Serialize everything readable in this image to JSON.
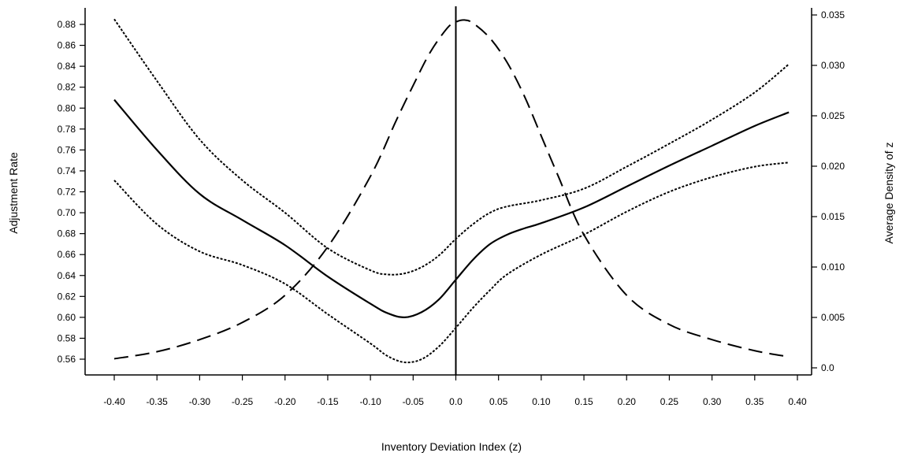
{
  "chart_data": {
    "type": "line",
    "title": "",
    "xlabel": "Inventory Deviation Index (z)",
    "ylabel": "Adjustment Rate",
    "y2label": "Average Density of z",
    "xlim": [
      -0.4,
      0.4
    ],
    "ylim": [
      0.55,
      0.89
    ],
    "y2lim": [
      0.0,
      0.036
    ],
    "x_ticks": [
      "-0.40",
      "-0.35",
      "-0.30",
      "-0.25",
      "-0.20",
      "-0.15",
      "-0.10",
      "-0.05",
      "0.0",
      "0.05",
      "0.10",
      "0.15",
      "0.20",
      "0.25",
      "0.30",
      "0.35",
      "0.40"
    ],
    "y_ticks": [
      "0.56",
      "0.58",
      "0.60",
      "0.62",
      "0.64",
      "0.66",
      "0.68",
      "0.70",
      "0.72",
      "0.74",
      "0.76",
      "0.78",
      "0.80",
      "0.82",
      "0.84",
      "0.86",
      "0.88"
    ],
    "y2_ticks": [
      "0.0",
      "0.005",
      "0.010",
      "0.015",
      "0.020",
      "0.025",
      "0.030",
      "0.035"
    ],
    "grid": false,
    "legend": "none",
    "vertical_reference_line_x": 0.0,
    "series": [
      {
        "axis": "left",
        "style": "solid",
        "x": [
          -0.4,
          -0.35,
          -0.3,
          -0.25,
          -0.2,
          -0.15,
          -0.1,
          -0.08,
          -0.06,
          -0.04,
          -0.02,
          0.0,
          0.02,
          0.04,
          0.06,
          0.08,
          0.1,
          0.15,
          0.2,
          0.25,
          0.3,
          0.35,
          0.39
        ],
        "y": [
          0.808,
          0.76,
          0.718,
          0.693,
          0.669,
          0.639,
          0.613,
          0.604,
          0.6,
          0.605,
          0.617,
          0.636,
          0.655,
          0.67,
          0.679,
          0.685,
          0.69,
          0.705,
          0.725,
          0.745,
          0.764,
          0.783,
          0.796
        ]
      },
      {
        "axis": "left",
        "style": "dotted",
        "x": [
          -0.4,
          -0.35,
          -0.3,
          -0.25,
          -0.2,
          -0.15,
          -0.1,
          -0.08,
          -0.06,
          -0.04,
          -0.02,
          0.0,
          0.02,
          0.04,
          0.06,
          0.1,
          0.15,
          0.2,
          0.25,
          0.3,
          0.35,
          0.39
        ],
        "y": [
          0.885,
          0.826,
          0.77,
          0.731,
          0.7,
          0.666,
          0.645,
          0.641,
          0.642,
          0.648,
          0.659,
          0.675,
          0.689,
          0.7,
          0.706,
          0.712,
          0.723,
          0.744,
          0.766,
          0.789,
          0.815,
          0.842
        ]
      },
      {
        "axis": "left",
        "style": "dotted",
        "x": [
          -0.4,
          -0.35,
          -0.3,
          -0.25,
          -0.2,
          -0.15,
          -0.1,
          -0.08,
          -0.06,
          -0.04,
          -0.02,
          0.0,
          0.02,
          0.04,
          0.06,
          0.1,
          0.15,
          0.2,
          0.25,
          0.3,
          0.35,
          0.39
        ],
        "y": [
          0.731,
          0.689,
          0.663,
          0.65,
          0.632,
          0.603,
          0.575,
          0.563,
          0.557,
          0.56,
          0.572,
          0.59,
          0.609,
          0.626,
          0.641,
          0.66,
          0.679,
          0.701,
          0.72,
          0.734,
          0.744,
          0.748
        ]
      },
      {
        "axis": "right",
        "style": "dashed",
        "x": [
          -0.4,
          -0.35,
          -0.3,
          -0.25,
          -0.2,
          -0.15,
          -0.1,
          -0.07,
          -0.05,
          -0.03,
          -0.01,
          0.0,
          0.01,
          0.02,
          0.04,
          0.06,
          0.08,
          0.1,
          0.12,
          0.15,
          0.2,
          0.25,
          0.3,
          0.35,
          0.39
        ],
        "y": [
          0.0009,
          0.0016,
          0.0028,
          0.0045,
          0.0072,
          0.012,
          0.019,
          0.0245,
          0.028,
          0.0313,
          0.0337,
          0.0343,
          0.0345,
          0.0342,
          0.0327,
          0.0303,
          0.027,
          0.023,
          0.019,
          0.0132,
          0.0072,
          0.0043,
          0.0028,
          0.0017,
          0.0011
        ]
      }
    ]
  }
}
